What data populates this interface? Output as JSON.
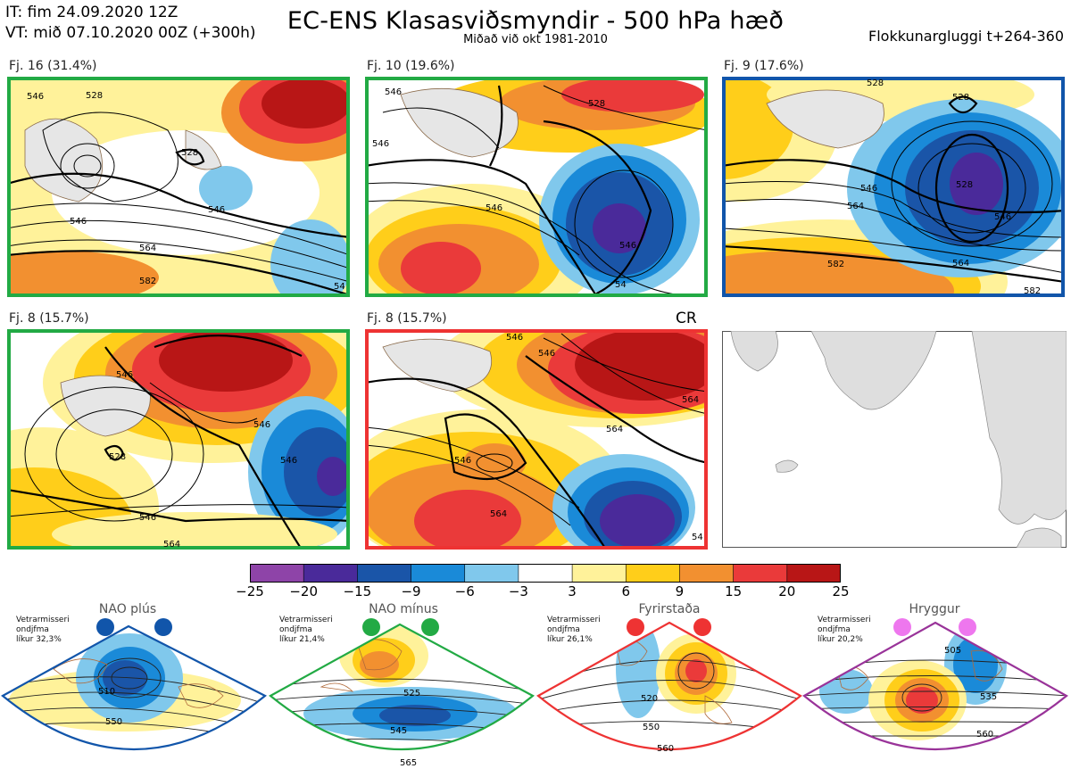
{
  "header": {
    "it_line": "IT: fim 24.09.2020 12Z",
    "vt_line": "VT: mið 07.10.2020 00Z  (+300h)",
    "title": "EC-ENS Klasasviðsmyndir - 500 hPa hæð",
    "subtitle": "Miðað við okt 1981-2010",
    "window": "Flokkunargluggi t+264-360"
  },
  "panels": [
    {
      "label": "Fj. 16 (31.4%)",
      "border": "#22aa44",
      "contours": [
        "546",
        "528",
        "528",
        "546",
        "564",
        "582",
        "546",
        "54"
      ]
    },
    {
      "label": "Fj. 10 (19.6%)",
      "border": "#22aa44",
      "contours": [
        "546",
        "546",
        "528",
        "546",
        "546",
        "54"
      ]
    },
    {
      "label": "Fj. 9 (17.6%)",
      "border": "#1155aa",
      "contours": [
        "528",
        "528",
        "546",
        "528",
        "546",
        "564",
        "582",
        "564",
        "582"
      ]
    },
    {
      "label": "Fj. 8 (15.7%)",
      "border": "#22aa44",
      "contours": [
        "546",
        "528",
        "546",
        "546",
        "546",
        "564"
      ]
    },
    {
      "label": "Fj. 8 (15.7%)",
      "border": "#ee3333",
      "tag": "CR",
      "contours": [
        "546",
        "546",
        "564",
        "546",
        "564",
        "564",
        "54"
      ]
    }
  ],
  "colorbar": {
    "colors": [
      "#8e44a8",
      "#4a2a9a",
      "#1a55a8",
      "#1a8ad8",
      "#80c8ec",
      "#ffffff",
      "#fff29a",
      "#ffce1a",
      "#f29030",
      "#ea3a3a",
      "#b81616"
    ],
    "ticks": [
      "−25",
      "−20",
      "−15",
      "−9",
      "−6",
      "−3",
      "3",
      "6",
      "9",
      "15",
      "20",
      "25"
    ]
  },
  "regimes": [
    {
      "title": "NAO plús",
      "note1": "Vetrarmisseri",
      "note2": "ondjfma",
      "note3": "líkur 32,3%",
      "color": "#1155aa",
      "contours": [
        "510",
        "550"
      ]
    },
    {
      "title": "NAO mínus",
      "note1": "Vetrarmisseri",
      "note2": "ondjfma",
      "note3": "líkur 21,4%",
      "color": "#22aa44",
      "contours": [
        "525",
        "545",
        "565"
      ]
    },
    {
      "title": "Fyrirstaða",
      "note1": "Vetrarmisseri",
      "note2": "ondjfma",
      "note3": "líkur 26,1%",
      "color": "#ee3333",
      "contours": [
        "520",
        "550",
        "560"
      ]
    },
    {
      "title": "Hryggur",
      "note1": "Vetrarmisseri",
      "note2": "ondjfma",
      "note3": "líkur 20,2%",
      "color": "#993399",
      "dot_color": "#ee77ee",
      "contours": [
        "505",
        "535",
        "560"
      ]
    }
  ]
}
